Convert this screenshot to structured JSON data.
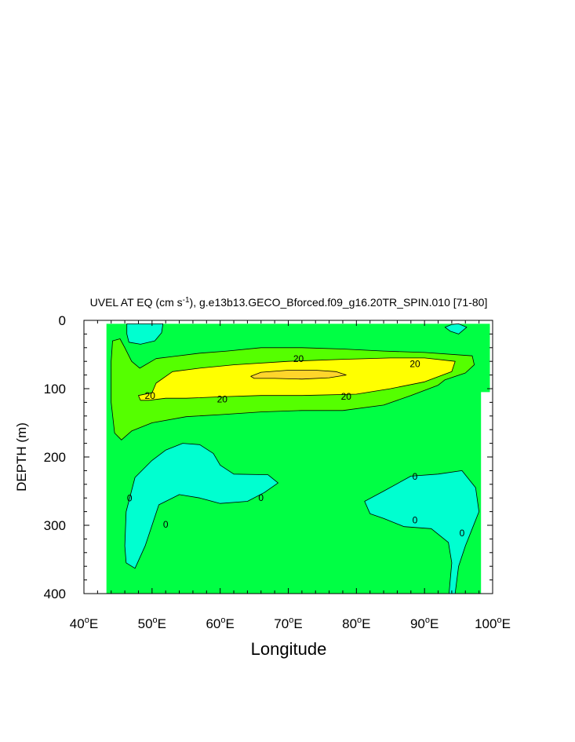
{
  "chart_data": {
    "type": "contour",
    "title": "UVEL AT EQ (cm s",
    "title_sup": "-1",
    "title_rest": "), g.e13b13.GECO_Bforced.f09_g16.20TR_SPIN.010 [71-80]",
    "xlabel": "Longitude",
    "ylabel": "DEPTH (m)",
    "xlim": [
      40,
      100
    ],
    "ylim": [
      0,
      400
    ],
    "y_inverted": true,
    "x_ticks": [
      {
        "value": 40,
        "num": "40",
        "sup": "o",
        "hem": "E"
      },
      {
        "value": 50,
        "num": "50",
        "sup": "o",
        "hem": "E"
      },
      {
        "value": 60,
        "num": "60",
        "sup": "o",
        "hem": "E"
      },
      {
        "value": 70,
        "num": "70",
        "sup": "o",
        "hem": "E"
      },
      {
        "value": 80,
        "num": "80",
        "sup": "o",
        "hem": "E"
      },
      {
        "value": 90,
        "num": "90",
        "sup": "o",
        "hem": "E"
      },
      {
        "value": 100,
        "num": "100",
        "sup": "o",
        "hem": "E"
      }
    ],
    "y_ticks": [
      {
        "value": 0,
        "label": "0"
      },
      {
        "value": 100,
        "label": "100"
      },
      {
        "value": 200,
        "label": "200"
      },
      {
        "value": 300,
        "label": "300"
      },
      {
        "value": 400,
        "label": "400"
      }
    ],
    "contour_levels": [
      0,
      10,
      20,
      30
    ],
    "colors": {
      "below_0": "#00ffd0",
      "0_to_10": "#00ff44",
      "10_to_20": "#55ff00",
      "20_to_30": "#ffff00",
      "above_30": "#ffd52b",
      "contour_line": "#000000"
    },
    "regions": [
      {
        "level": "0_to_10",
        "points": [
          [
            43.3,
            5
          ],
          [
            99.6,
            5
          ],
          [
            99.6,
            105
          ],
          [
            98.3,
            105
          ],
          [
            98.3,
            400
          ],
          [
            43.3,
            400
          ]
        ]
      },
      {
        "level": "below_0",
        "points": [
          [
            46.3,
            5
          ],
          [
            51.6,
            5
          ],
          [
            51.4,
            18
          ],
          [
            50.4,
            30
          ],
          [
            48.3,
            35
          ],
          [
            46.6,
            32
          ],
          [
            46.3,
            20
          ]
        ]
      },
      {
        "level": "below_0",
        "points": [
          [
            93.0,
            10
          ],
          [
            94.0,
            6
          ],
          [
            95.0,
            5
          ],
          [
            96.2,
            10
          ],
          [
            95.0,
            20
          ],
          [
            93.8,
            16
          ]
        ]
      },
      {
        "level": "10_to_20",
        "points": [
          [
            44.2,
            30
          ],
          [
            45.3,
            27
          ],
          [
            46.0,
            40
          ],
          [
            47.0,
            60
          ],
          [
            48.2,
            70
          ],
          [
            50.6,
            56
          ],
          [
            53.0,
            53
          ],
          [
            57.0,
            48
          ],
          [
            61.0,
            45
          ],
          [
            66.0,
            40
          ],
          [
            72.0,
            40
          ],
          [
            78.0,
            42
          ],
          [
            84.0,
            45
          ],
          [
            90.0,
            47
          ],
          [
            97.0,
            52
          ],
          [
            97.3,
            65
          ],
          [
            96.0,
            77
          ],
          [
            93.0,
            87
          ],
          [
            92.0,
            95
          ],
          [
            88.0,
            110
          ],
          [
            84.0,
            124
          ],
          [
            78.0,
            132
          ],
          [
            72.0,
            132
          ],
          [
            66.0,
            134
          ],
          [
            60.0,
            138
          ],
          [
            55.0,
            141
          ],
          [
            50.0,
            150
          ],
          [
            47.0,
            162
          ],
          [
            45.5,
            175
          ],
          [
            44.5,
            165
          ],
          [
            44.0,
            120
          ],
          [
            44.0,
            60
          ]
        ]
      },
      {
        "level": "20_to_30",
        "points": [
          [
            50.0,
            106
          ],
          [
            50.6,
            92
          ],
          [
            53.0,
            75
          ],
          [
            57.0,
            70
          ],
          [
            62.0,
            65
          ],
          [
            70.0,
            60
          ],
          [
            78.0,
            57
          ],
          [
            85.0,
            55
          ],
          [
            90.0,
            55
          ],
          [
            94.5,
            60
          ],
          [
            94.0,
            75
          ],
          [
            90.0,
            90
          ],
          [
            85.0,
            100
          ],
          [
            80.0,
            108
          ],
          [
            72.0,
            110
          ],
          [
            66.0,
            110
          ],
          [
            60.0,
            112
          ],
          [
            55.0,
            114
          ],
          [
            52.0,
            114
          ],
          [
            49.5,
            117
          ],
          [
            48.3,
            117
          ],
          [
            48.0,
            110
          ]
        ]
      },
      {
        "level": "above_30",
        "points": [
          [
            64.5,
            82
          ],
          [
            66.0,
            76
          ],
          [
            70.0,
            73
          ],
          [
            74.0,
            73
          ],
          [
            77.0,
            75
          ],
          [
            78.5,
            80
          ],
          [
            76.0,
            84
          ],
          [
            72.0,
            86
          ],
          [
            68.0,
            85
          ],
          [
            65.0,
            85
          ]
        ]
      },
      {
        "level": "below_0",
        "points": [
          [
            46.2,
            355
          ],
          [
            46.0,
            330
          ],
          [
            46.2,
            280
          ],
          [
            47.5,
            230
          ],
          [
            50.0,
            205
          ],
          [
            52.0,
            190
          ],
          [
            54.5,
            180
          ],
          [
            57.0,
            182
          ],
          [
            59.0,
            195
          ],
          [
            60.0,
            212
          ],
          [
            62.0,
            225
          ],
          [
            67.0,
            226
          ],
          [
            68.5,
            238
          ],
          [
            66.5,
            252
          ],
          [
            64.0,
            265
          ],
          [
            60.0,
            268
          ],
          [
            57.0,
            260
          ],
          [
            54.0,
            255
          ],
          [
            51.0,
            270
          ],
          [
            49.0,
            330
          ],
          [
            47.5,
            363
          ]
        ]
      },
      {
        "level": "below_0",
        "points": [
          [
            81.2,
            265
          ],
          [
            84.0,
            250
          ],
          [
            88.0,
            228
          ],
          [
            92.0,
            225
          ],
          [
            95.5,
            220
          ],
          [
            97.5,
            245
          ],
          [
            98.0,
            280
          ],
          [
            97.0,
            305
          ],
          [
            96.0,
            330
          ],
          [
            95.0,
            360
          ],
          [
            94.5,
            400
          ],
          [
            93.6,
            400
          ],
          [
            94.0,
            355
          ],
          [
            93.5,
            325
          ],
          [
            91.0,
            305
          ],
          [
            87.0,
            302
          ],
          [
            84.0,
            290
          ],
          [
            82.0,
            283
          ]
        ]
      }
    ],
    "contour_labels": [
      {
        "x": 49.7,
        "y": 110,
        "label": "20"
      },
      {
        "x": 60.3,
        "y": 115,
        "label": "20"
      },
      {
        "x": 71.5,
        "y": 56,
        "label": "20"
      },
      {
        "x": 78.5,
        "y": 111,
        "label": "20"
      },
      {
        "x": 88.6,
        "y": 63,
        "label": "20"
      },
      {
        "x": 46.7,
        "y": 260,
        "label": "0"
      },
      {
        "x": 52.0,
        "y": 298,
        "label": "0"
      },
      {
        "x": 66.0,
        "y": 259,
        "label": "0"
      },
      {
        "x": 88.6,
        "y": 228,
        "label": "0"
      },
      {
        "x": 88.6,
        "y": 292,
        "label": "0"
      },
      {
        "x": 95.5,
        "y": 311,
        "label": "0"
      }
    ]
  }
}
